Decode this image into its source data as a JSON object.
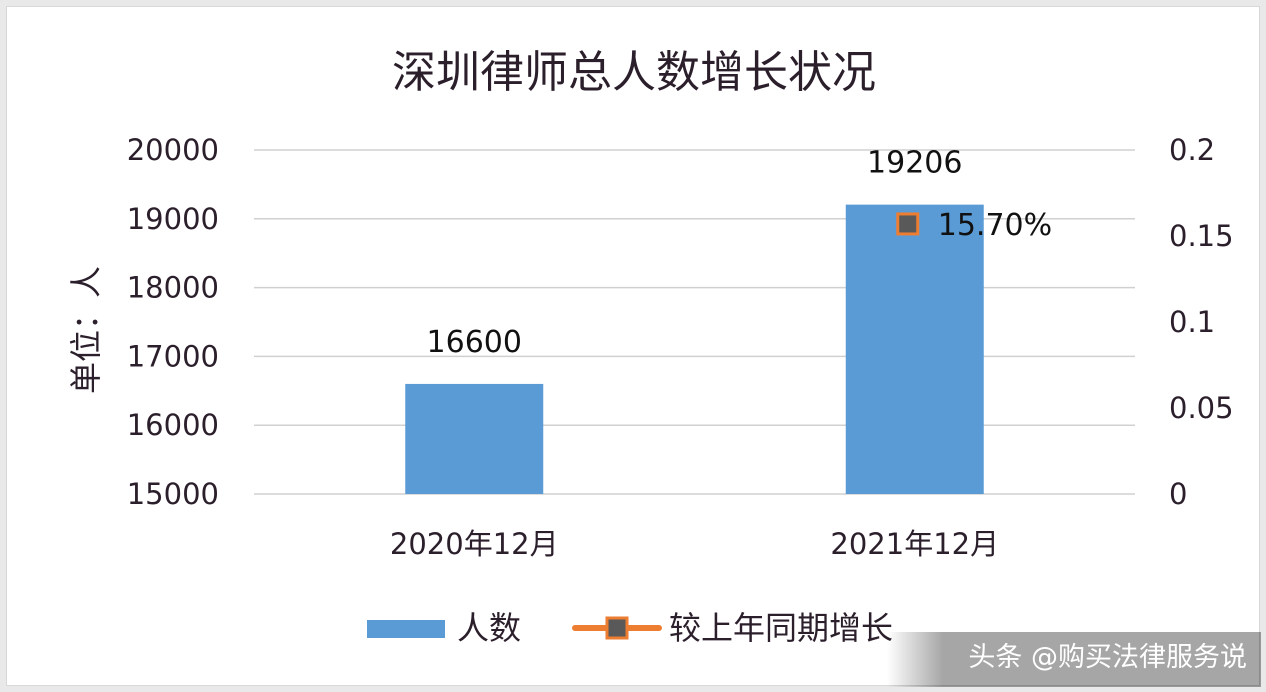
{
  "chart_data": {
    "type": "bar",
    "title": "深圳律师总人数增长状况",
    "ylabel": "单位：人",
    "categories": [
      "2020年12月",
      "2021年12月"
    ],
    "series": [
      {
        "name": "人数",
        "type": "bar",
        "axis": "left",
        "values": [
          16600,
          19206
        ],
        "data_labels": [
          "16600",
          "19206"
        ],
        "color": "#5b9bd5"
      },
      {
        "name": "较上年同期增长",
        "type": "line",
        "axis": "right",
        "values": [
          null,
          0.157
        ],
        "data_labels": [
          "",
          "15.70%"
        ],
        "color": "#ed7d31",
        "marker_color": "#595959"
      }
    ],
    "ylim": [
      15000,
      20000
    ],
    "yticks": [
      "20000",
      "19000",
      "18000",
      "17000",
      "16000",
      "15000"
    ],
    "y2lim": [
      0,
      0.2
    ],
    "y2ticks": [
      "0.2",
      "0.15",
      "0.1",
      "0.05",
      "0"
    ],
    "grid": true,
    "legend_position": "bottom"
  },
  "watermark": "头条 @购买法律服务说"
}
